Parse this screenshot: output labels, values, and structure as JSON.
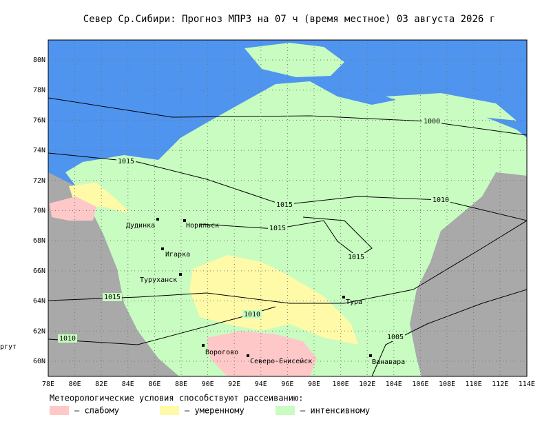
{
  "header": {
    "title": "Север Ср.Сибири:  Прогноз МПРЗ на 07 ч (время местное) 03 августа 2026 г"
  },
  "map": {
    "lat_labels": [
      "80N",
      "78N",
      "76N",
      "74N",
      "72N",
      "70N",
      "68N",
      "66N",
      "64N",
      "62N",
      "60N"
    ],
    "lon_labels": [
      "78E",
      "80E",
      "82E",
      "84E",
      "86E",
      "88E",
      "90E",
      "92E",
      "94E",
      "96E",
      "98E",
      "100E",
      "102E",
      "104E",
      "106E",
      "108E",
      "110E",
      "112E",
      "114E"
    ],
    "cities": [
      "Дудинка",
      "Норильск",
      "Игарка",
      "Туруханск",
      "Тура",
      "Ванавара",
      "Ворогово",
      "Северо-Енисейск"
    ],
    "outside_label": "ргут",
    "isobar_labels": [
      "1000",
      "1015",
      "1010",
      "1015",
      "1015",
      "1015",
      "1015",
      "1010",
      "1005",
      "1010"
    ]
  },
  "legend": {
    "title": "Метеорологические условия способствуют рассеиванию:",
    "items": [
      "– слабому",
      "– умеренному",
      "– интенсивному"
    ]
  }
}
